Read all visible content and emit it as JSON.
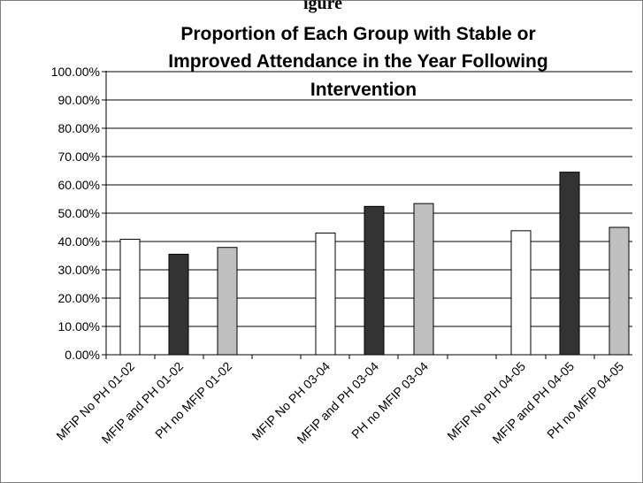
{
  "top_fragment": "igure",
  "chart_data": {
    "type": "bar",
    "title_lines": [
      "Proportion of Each Group with Stable or",
      "Improved Attendance in the Year Following",
      "Intervention"
    ],
    "categories": [
      "MFIP No PH 01-02",
      "MFIP and PH 01-02",
      "PH no MFIP 01-02",
      "MFIP No PH 03-04",
      "MFIP and PH 03-04",
      "PH no MFIP 03-04",
      "MFIP No PH 04-05",
      "MFIP and PH 04-05",
      "PH no MFIP 04-05"
    ],
    "values": [
      40.8,
      35.5,
      37.9,
      43.0,
      52.4,
      53.4,
      43.8,
      64.5,
      45.0
    ],
    "bar_colors": [
      "#ffffff",
      "#333333",
      "#bfbfbf",
      "#ffffff",
      "#333333",
      "#bfbfbf",
      "#ffffff",
      "#333333",
      "#bfbfbf"
    ],
    "y_ticks": [
      "0.00%",
      "10.00%",
      "20.00%",
      "30.00%",
      "40.00%",
      "50.00%",
      "60.00%",
      "70.00%",
      "80.00%",
      "90.00%",
      "100.00%"
    ],
    "ylim": [
      0,
      100
    ],
    "grid": true,
    "legend": "none"
  }
}
